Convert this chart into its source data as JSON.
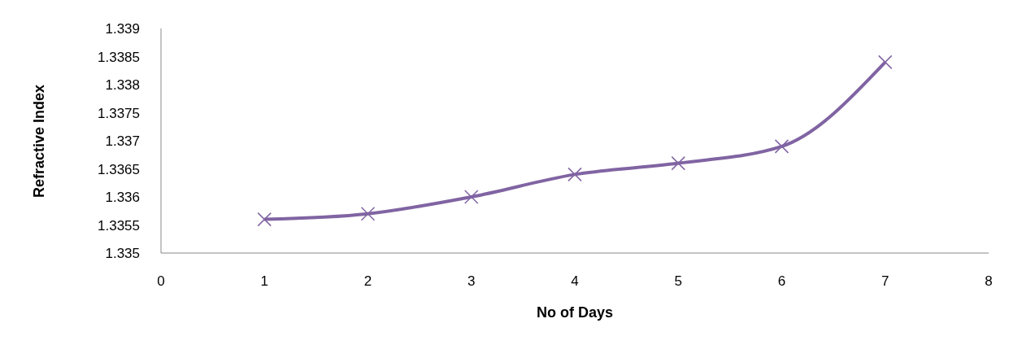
{
  "chart_data": {
    "type": "line",
    "xlabel": "No  of Days",
    "ylabel": "Refractive Index",
    "x": [
      1,
      2,
      3,
      4,
      5,
      6,
      7
    ],
    "series": [
      {
        "color": "#8064a2",
        "values": [
          1.3356,
          1.3357,
          1.336,
          1.3364,
          1.3366,
          1.3369,
          1.3384
        ]
      }
    ],
    "xlim": [
      0,
      8
    ],
    "xticks": [
      0,
      1,
      2,
      3,
      4,
      5,
      6,
      7,
      8
    ],
    "ylim": [
      1.335,
      1.339
    ],
    "yticks": [
      1.335,
      1.3355,
      1.336,
      1.3365,
      1.337,
      1.3375,
      1.338,
      1.3385,
      1.339
    ],
    "marker": "cross",
    "grid": false,
    "legend": false
  }
}
